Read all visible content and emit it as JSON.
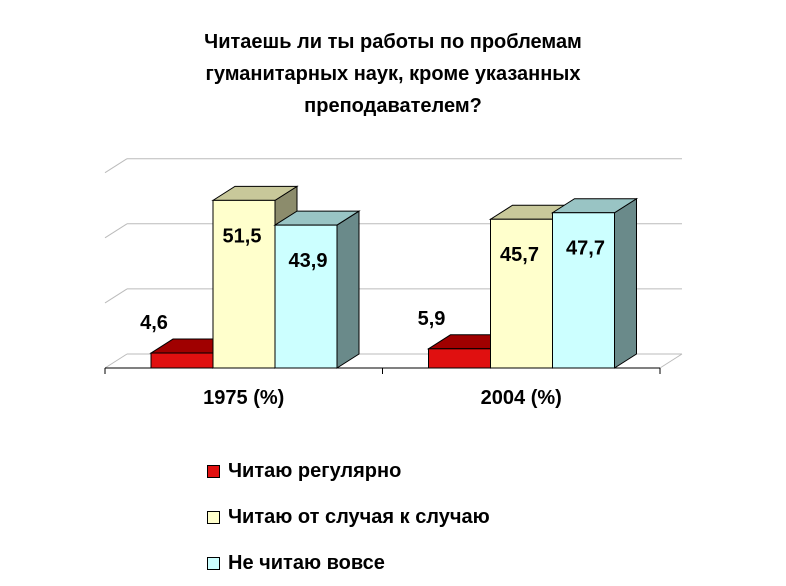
{
  "chart_data": {
    "type": "bar",
    "style": "3d-clustered-column",
    "title_lines": [
      "Читаешь ли ты работы по проблемам",
      "гуманитарных наук, кроме указанных",
      "преподавателем?"
    ],
    "categories": [
      "1975 (%)",
      "2004 (%)"
    ],
    "series": [
      {
        "name": "Читаю регулярно",
        "values": [
          4.6,
          5.9
        ],
        "labels": [
          "4,6",
          "5,9"
        ],
        "colors": {
          "front": "#e01010",
          "top": "#a00000",
          "side": "#7a0000"
        }
      },
      {
        "name": "Читаю от случая к случаю",
        "values": [
          51.5,
          45.7
        ],
        "labels": [
          "51,5",
          "45,7"
        ],
        "colors": {
          "front": "#ffffcc",
          "top": "#c8c89a",
          "side": "#8c8c6c"
        }
      },
      {
        "name": "Не читаю вовсе",
        "values": [
          43.9,
          47.7
        ],
        "labels": [
          "43,9",
          "47,7"
        ],
        "colors": {
          "front": "#ccffff",
          "top": "#99c4c4",
          "side": "#6a8a8a"
        }
      }
    ],
    "ylim": [
      0,
      60
    ],
    "grid": true,
    "legend_position": "bottom"
  }
}
